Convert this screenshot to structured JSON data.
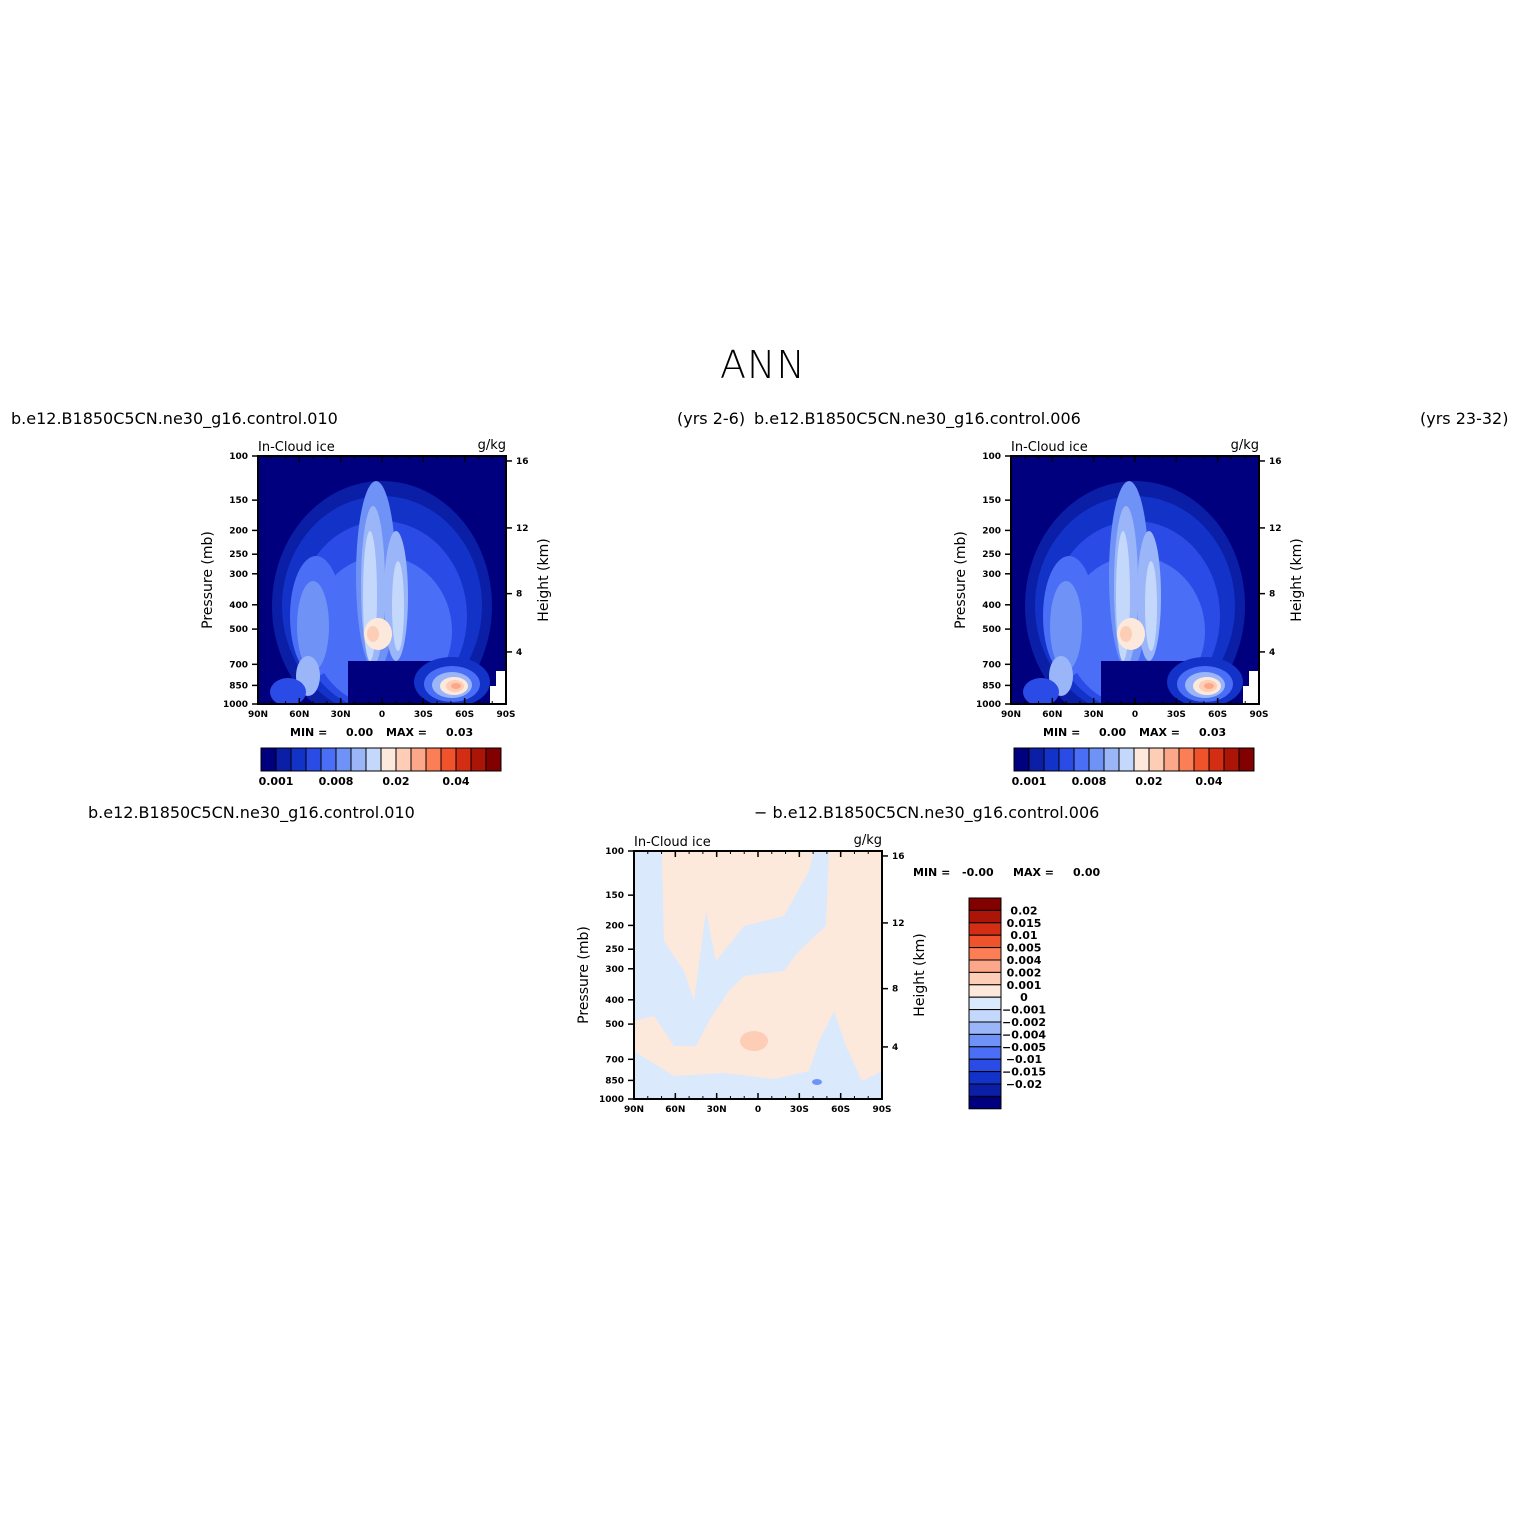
{
  "page": {
    "title": "ANN",
    "top_left_case": "b.e12.B1850C5CN.ne30_g16.control.010",
    "top_left_years": "(yrs 2-6)",
    "top_right_case": "b.e12.B1850C5CN.ne30_g16.control.006",
    "top_right_years": "(yrs 23-32)",
    "bottom_case_a": "b.e12.B1850C5CN.ne30_g16.control.010",
    "bottom_case_b": "− b.e12.B1850C5CN.ne30_g16.control.006"
  },
  "colors": {
    "abs_scale": [
      "#00007f",
      "#0a1ea6",
      "#1232c8",
      "#2a4be6",
      "#4a6ef5",
      "#6f92f7",
      "#9ab6f9",
      "#c4d8fb",
      "#fde9dc",
      "#fdcdb5",
      "#fca78a",
      "#fb7e57",
      "#f0522c",
      "#d32d14",
      "#aa1508",
      "#820000"
    ],
    "diff_scale": [
      "#00007f",
      "#0a1ea6",
      "#1232c8",
      "#2a4be6",
      "#4a6ef5",
      "#6f92f7",
      "#9ab6f9",
      "#c4d8fb",
      "#dbe9fc",
      "#fde9dc",
      "#fdcdb5",
      "#fca78a",
      "#fb7e57",
      "#f0522c",
      "#d32d14",
      "#aa1508",
      "#820000"
    ]
  },
  "chart_data": [
    {
      "type": "heatmap",
      "left_string": "In-Cloud ice",
      "right_string": "g/kg",
      "ylabel": "Pressure (mb)",
      "ylabel_right": "Height (km)",
      "x_ticks": [
        "90N",
        "60N",
        "30N",
        "0",
        "30S",
        "60S",
        "90S"
      ],
      "y_ticks": [
        "100",
        "150",
        "200",
        "250",
        "300",
        "400",
        "500",
        "700",
        "850",
        "1000"
      ],
      "y_ticks_right": [
        "16",
        "12",
        "8",
        "4"
      ],
      "min_label": "MIN =",
      "min_value": "0.00",
      "max_label": "MAX =",
      "max_value": "0.03",
      "colorbar_labels": [
        "0.001",
        "0.008",
        "0.02",
        "0.04"
      ]
    },
    {
      "type": "heatmap",
      "left_string": "In-Cloud ice",
      "right_string": "g/kg",
      "ylabel": "Pressure (mb)",
      "ylabel_right": "Height (km)",
      "x_ticks": [
        "90N",
        "60N",
        "30N",
        "0",
        "30S",
        "60S",
        "90S"
      ],
      "y_ticks": [
        "100",
        "150",
        "200",
        "250",
        "300",
        "400",
        "500",
        "700",
        "850",
        "1000"
      ],
      "y_ticks_right": [
        "16",
        "12",
        "8",
        "4"
      ],
      "min_label": "MIN =",
      "min_value": "0.00",
      "max_label": "MAX =",
      "max_value": "0.03",
      "colorbar_labels": [
        "0.001",
        "0.008",
        "0.02",
        "0.04"
      ]
    },
    {
      "type": "heatmap",
      "left_string": "In-Cloud ice",
      "right_string": "g/kg",
      "ylabel": "Pressure (mb)",
      "ylabel_right": "Height (km)",
      "x_ticks": [
        "90N",
        "60N",
        "30N",
        "0",
        "30S",
        "60S",
        "90S"
      ],
      "y_ticks": [
        "100",
        "150",
        "200",
        "250",
        "300",
        "400",
        "500",
        "700",
        "850",
        "1000"
      ],
      "y_ticks_right": [
        "16",
        "12",
        "8",
        "4"
      ],
      "min_label": "MIN =",
      "min_value": "-0.00",
      "max_label": "MAX =",
      "max_value": "0.00",
      "colorbar_labels": [
        "0.02",
        "0.015",
        "0.01",
        "0.005",
        "0.004",
        "0.002",
        "0.001",
        "0",
        "-0.001",
        "-0.002",
        "-0.004",
        "-0.005",
        "-0.01",
        "-0.015",
        "-0.02"
      ]
    }
  ]
}
